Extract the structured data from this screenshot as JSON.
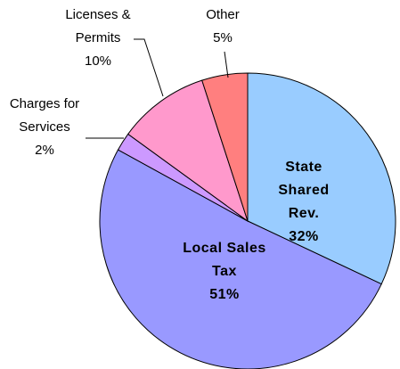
{
  "chart_data": {
    "type": "pie",
    "categories": [
      "State Shared Rev.",
      "Local Sales Tax",
      "Charges for Services",
      "Licenses & Permits",
      "Other"
    ],
    "values": [
      32,
      51,
      2,
      10,
      5
    ],
    "value_labels": [
      "32%",
      "51%",
      "2%",
      "10%",
      "5%"
    ],
    "colors": [
      "#99ccff",
      "#9999ff",
      "#cc99ff",
      "#ff99cc",
      "#ff7f7f"
    ]
  }
}
